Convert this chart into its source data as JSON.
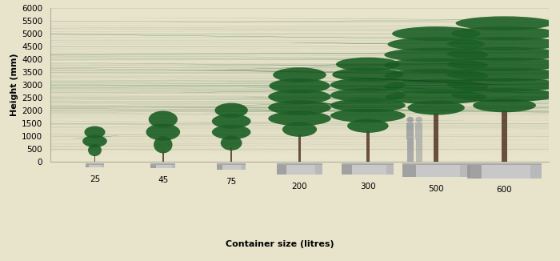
{
  "background_color": "#e8e4cc",
  "xlabel": "Container size (litres)",
  "ylabel": "Height (mm)",
  "ylim_bottom": 0,
  "ylim_top": 6000,
  "yticks": [
    0,
    500,
    1000,
    1500,
    2000,
    2500,
    3000,
    3500,
    4000,
    4500,
    5000,
    5500,
    6000
  ],
  "containers": [
    "25",
    "45",
    "75",
    "200",
    "300",
    "500",
    "600"
  ],
  "x_positions": [
    1,
    2,
    3,
    4,
    5,
    6,
    7
  ],
  "xlim": [
    0.35,
    7.65
  ],
  "trunk_heights": [
    280,
    420,
    520,
    1050,
    1200,
    1900,
    2000
  ],
  "canopy_heights": [
    1050,
    1480,
    1700,
    2550,
    2800,
    3300,
    3600
  ],
  "canopy_widths": [
    0.36,
    0.5,
    0.57,
    0.92,
    1.1,
    1.52,
    1.68
  ],
  "pot_widths": [
    0.28,
    0.36,
    0.42,
    0.66,
    0.76,
    1.0,
    1.1
  ],
  "pot_heights": [
    160,
    210,
    260,
    440,
    450,
    540,
    590
  ],
  "tree_color_dark": "#14481c",
  "tree_color_mid": "#1e6128",
  "tree_color_light": "#287832",
  "trunk_color": "#6b5040",
  "pot_color_light": "#c8c8c8",
  "pot_color_mid": "#a8a8a8",
  "pot_color_dark": "#828282",
  "person_color": "#aaaaaa",
  "grid_color": "#d2ceae",
  "grid_linewidth": 0.55,
  "axis_label_fontsize": 8,
  "tick_fontsize": 7.5,
  "human_height": 1750,
  "human_x": 5.62,
  "n_blobs": [
    55,
    70,
    85,
    110,
    125,
    145,
    160
  ],
  "seeds": [
    3,
    11,
    19,
    31,
    47,
    67,
    83
  ]
}
